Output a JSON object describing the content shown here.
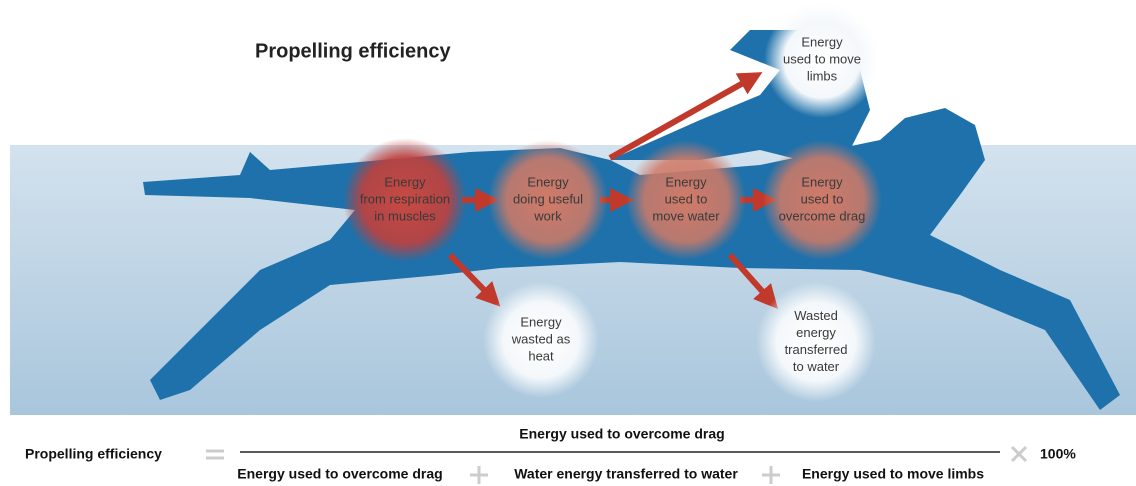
{
  "title": "Propelling efficiency",
  "nodes": [
    {
      "lines": [
        "Energy",
        "from respiration",
        "in muscles"
      ]
    },
    {
      "lines": [
        "Energy",
        "doing useful",
        "work"
      ]
    },
    {
      "lines": [
        "Energy",
        "used to",
        "move water"
      ]
    },
    {
      "lines": [
        "Energy",
        "used to",
        "overcome drag"
      ]
    },
    {
      "lines": [
        "Energy",
        "wasted as",
        "heat"
      ]
    },
    {
      "lines": [
        "Wasted",
        "energy",
        "transferred",
        "to water"
      ]
    },
    {
      "lines": [
        "Energy",
        "used to move",
        "limbs"
      ]
    }
  ],
  "formula": {
    "lhs": "Propelling efficiency",
    "numerator": "Energy used to overcome drag",
    "denominator": [
      "Energy used to overcome drag",
      "Water energy transferred to water",
      "Energy used to move limbs"
    ],
    "factor": "100%"
  }
}
